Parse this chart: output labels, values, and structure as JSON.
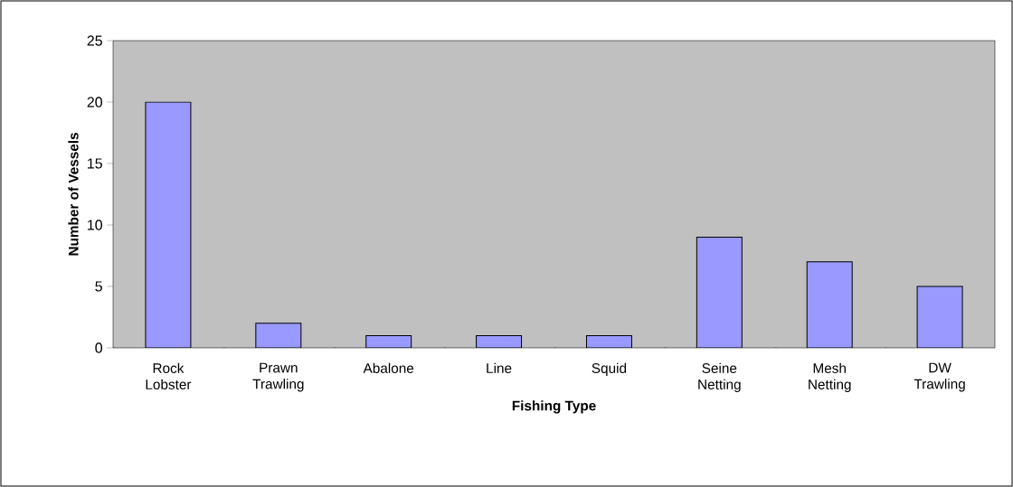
{
  "chart_data": {
    "type": "bar",
    "xlabel": "Fishing Type",
    "ylabel": "Number of Vessels",
    "categories": [
      "Rock Lobster",
      "Prawn Trawling",
      "Abalone",
      "Line",
      "Squid",
      "Seine Netting",
      "Mesh Netting",
      "DW Trawling"
    ],
    "values": [
      20,
      2,
      1,
      1,
      1,
      9,
      7,
      5
    ],
    "color": "#9999ff",
    "ylim": [
      0,
      25
    ],
    "yticks": [
      0,
      5,
      10,
      15,
      20,
      25
    ],
    "grid": false
  }
}
